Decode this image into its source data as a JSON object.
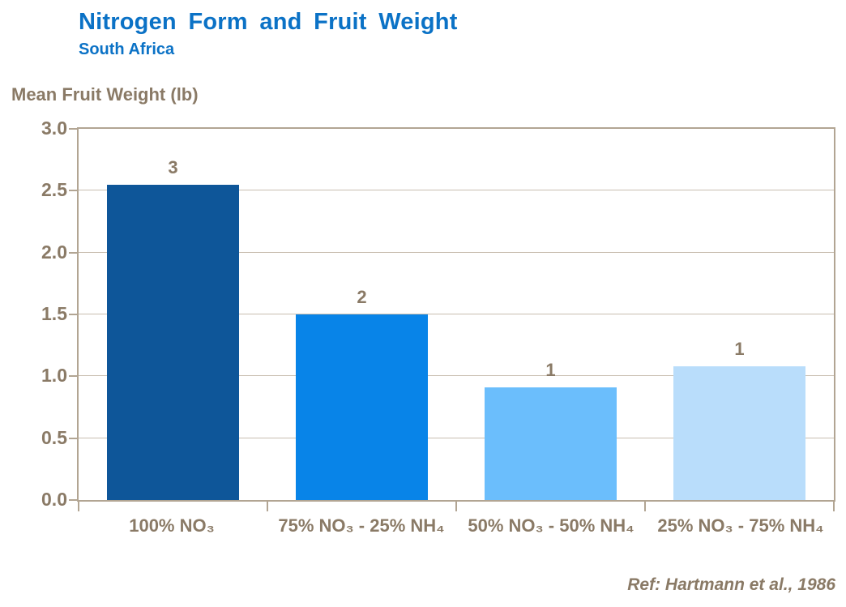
{
  "chart_data": {
    "type": "bar",
    "title": "Nitrogen Form and Fruit Weight",
    "subtitle": "South Africa",
    "ylabel": "Mean Fruit Weight (lb)",
    "categories": [
      "100% NO₃",
      "75% NO₃ - 25% NH₄",
      "50% NO₃ - 50% NH₄",
      "25% NO₃ - 75% NH₄"
    ],
    "values": [
      2.55,
      1.5,
      0.91,
      1.08
    ],
    "bar_labels": [
      "3",
      "2",
      "1",
      "1"
    ],
    "bar_colors": [
      "#0E5699",
      "#0884E8",
      "#6BBEFC",
      "#B9DDFB"
    ],
    "ylim": [
      0,
      3
    ],
    "ytick_step": 0.5,
    "ytick_labels": [
      "3.0",
      "2.5",
      "2.0",
      "1.5",
      "1.0",
      "0.5",
      "0.0"
    ],
    "grid": true,
    "legend": "none",
    "reference": "Ref: Hartmann et al., 1986"
  },
  "colors": {
    "title_blue": "#0B72C6",
    "axis_text_brown": "#8A7A66",
    "axis_line": "#B2A593",
    "gridline": "#C8BEB0",
    "background": "#FFFFFF"
  }
}
